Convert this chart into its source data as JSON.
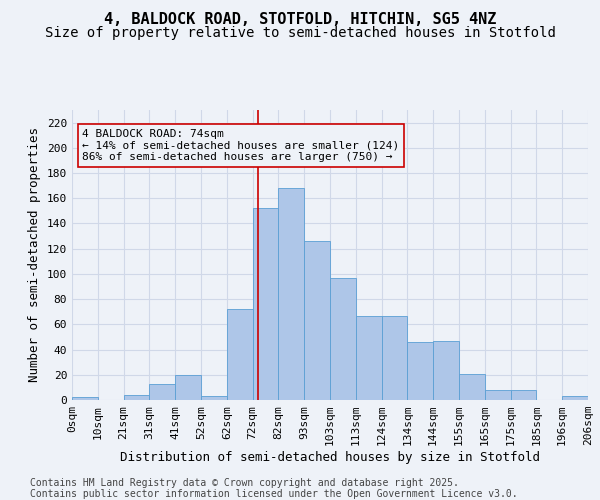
{
  "title1": "4, BALDOCK ROAD, STOTFOLD, HITCHIN, SG5 4NZ",
  "title2": "Size of property relative to semi-detached houses in Stotfold",
  "xlabel": "Distribution of semi-detached houses by size in Stotfold",
  "ylabel": "Number of semi-detached properties",
  "footnote": "Contains HM Land Registry data © Crown copyright and database right 2025.\nContains public sector information licensed under the Open Government Licence v3.0.",
  "bin_labels": [
    "0sqm",
    "10sqm",
    "21sqm",
    "31sqm",
    "41sqm",
    "52sqm",
    "62sqm",
    "72sqm",
    "82sqm",
    "93sqm",
    "103sqm",
    "113sqm",
    "124sqm",
    "134sqm",
    "144sqm",
    "155sqm",
    "165sqm",
    "175sqm",
    "185sqm",
    "196sqm",
    "206sqm"
  ],
  "bar_heights": [
    2,
    0,
    4,
    13,
    20,
    3,
    72,
    152,
    168,
    126,
    97,
    67,
    67,
    46,
    47,
    21,
    8,
    8,
    0,
    3
  ],
  "bar_color": "#aec6e8",
  "bar_edge_color": "#5a9fd4",
  "grid_color": "#d0d8e8",
  "background_color": "#eef2f8",
  "vline_color": "#cc0000",
  "annotation_text": "4 BALDOCK ROAD: 74sqm\n← 14% of semi-detached houses are smaller (124)\n86% of semi-detached houses are larger (750) →",
  "annotation_box_color": "#cc0000",
  "ylim": [
    0,
    230
  ],
  "yticks": [
    0,
    20,
    40,
    60,
    80,
    100,
    120,
    140,
    160,
    180,
    200,
    220
  ],
  "title1_fontsize": 11,
  "title2_fontsize": 10,
  "xlabel_fontsize": 9,
  "ylabel_fontsize": 9,
  "tick_fontsize": 8,
  "annot_fontsize": 8,
  "footnote_fontsize": 7
}
